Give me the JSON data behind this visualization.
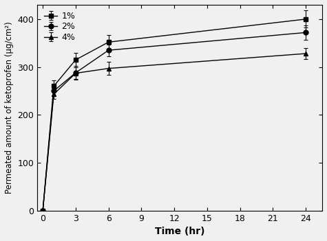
{
  "series": [
    {
      "label": "1%",
      "marker": "s",
      "x": [
        0,
        1,
        3,
        6,
        24
      ],
      "y": [
        0,
        260,
        315,
        352,
        400
      ],
      "yerr": [
        0,
        12,
        15,
        15,
        18
      ]
    },
    {
      "label": "2%",
      "marker": "o",
      "x": [
        0,
        1,
        3,
        6,
        24
      ],
      "y": [
        0,
        250,
        288,
        335,
        372
      ],
      "yerr": [
        0,
        10,
        14,
        12,
        15
      ]
    },
    {
      "label": "4%",
      "marker": "^",
      "x": [
        0,
        1,
        3,
        6,
        24
      ],
      "y": [
        0,
        243,
        287,
        297,
        328
      ],
      "yerr": [
        0,
        10,
        12,
        14,
        12
      ]
    }
  ],
  "xlabel": "Time (hr)",
  "ylabel": "Permeated amount of ketoprofen (μg/cm²)",
  "xlim": [
    -0.5,
    25.5
  ],
  "ylim": [
    0,
    430
  ],
  "xticks": [
    0,
    3,
    6,
    9,
    12,
    15,
    18,
    21,
    24
  ],
  "yticks": [
    0,
    100,
    200,
    300,
    400
  ],
  "line_color": "black",
  "marker_color": "black",
  "marker_size": 5,
  "line_width": 1.0,
  "capsize": 2.5,
  "legend_loc": "upper left",
  "background_color": "#f0f0f0"
}
